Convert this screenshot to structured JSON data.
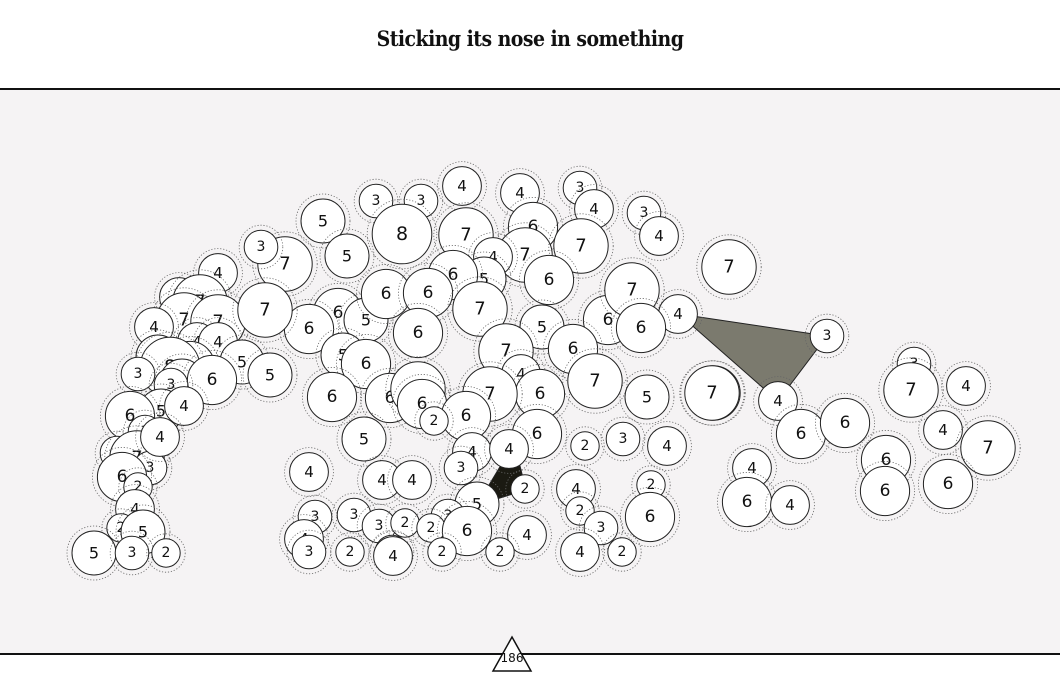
{
  "puzzle": {
    "title": "Sticking its nose in something",
    "page_number": "186",
    "colors": {
      "background": "#f5f3f4",
      "header": "#ffffff",
      "bubble_fill": "#ffffff",
      "bubble_stroke": "#222222",
      "halo_stroke": "#666666",
      "shape_gray": "#7b7a6e",
      "shape_black": "#1b1a12"
    },
    "bubbles": [
      {
        "label": "3"
      },
      {
        "label": "3"
      },
      {
        "label": "4"
      },
      {
        "label": "4"
      },
      {
        "label": "3"
      },
      {
        "label": "4"
      },
      {
        "label": "6"
      },
      {
        "label": "3"
      },
      {
        "label": "4"
      },
      {
        "label": "5"
      },
      {
        "label": "8"
      },
      {
        "label": "7"
      },
      {
        "label": "7"
      },
      {
        "label": "7"
      },
      {
        "label": "4"
      },
      {
        "label": "7"
      },
      {
        "label": "5"
      },
      {
        "label": "5"
      },
      {
        "label": "6"
      },
      {
        "label": "6"
      },
      {
        "label": "3"
      },
      {
        "label": "7"
      },
      {
        "label": "4"
      },
      {
        "label": "4"
      },
      {
        "label": "7"
      },
      {
        "label": "4"
      },
      {
        "label": "7"
      },
      {
        "label": "7"
      },
      {
        "label": "4"
      },
      {
        "label": "4"
      },
      {
        "label": "6"
      },
      {
        "label": "5"
      },
      {
        "label": "6"
      },
      {
        "label": "6"
      },
      {
        "label": "6"
      },
      {
        "label": "7"
      },
      {
        "label": "6"
      },
      {
        "label": "7"
      },
      {
        "label": "5"
      },
      {
        "label": "4"
      },
      {
        "label": "3"
      },
      {
        "label": "4"
      },
      {
        "label": "6"
      },
      {
        "label": "5"
      },
      {
        "label": "7"
      },
      {
        "label": "6"
      },
      {
        "label": "5"
      },
      {
        "label": "6"
      },
      {
        "label": "5"
      },
      {
        "label": "6"
      },
      {
        "label": "5"
      },
      {
        "label": "8"
      },
      {
        "label": "3"
      },
      {
        "label": "6"
      },
      {
        "label": "7"
      },
      {
        "label": "5"
      },
      {
        "label": "6"
      },
      {
        "label": "3"
      },
      {
        "label": "7"
      },
      {
        "label": "7"
      },
      {
        "label": "4"
      },
      {
        "label": "6"
      },
      {
        "label": "6"
      },
      {
        "label": "7"
      },
      {
        "label": "6"
      },
      {
        "label": "5"
      },
      {
        "label": "7"
      },
      {
        "label": "4"
      },
      {
        "label": "6"
      },
      {
        "label": "7"
      },
      {
        "label": "3"
      },
      {
        "label": "4"
      },
      {
        "label": "6"
      },
      {
        "label": "5"
      },
      {
        "label": "6"
      },
      {
        "label": "6"
      },
      {
        "label": "2"
      },
      {
        "label": "6"
      },
      {
        "label": "7"
      },
      {
        "label": "4"
      },
      {
        "label": "4"
      },
      {
        "label": "7"
      },
      {
        "label": "3"
      },
      {
        "label": "3"
      },
      {
        "label": "7"
      },
      {
        "label": "3"
      },
      {
        "label": "6"
      },
      {
        "label": "4"
      },
      {
        "label": "4"
      },
      {
        "label": "3"
      },
      {
        "label": "2"
      },
      {
        "label": "5"
      },
      {
        "label": "4"
      },
      {
        "label": "4"
      },
      {
        "label": "6"
      },
      {
        "label": "6"
      },
      {
        "label": "2"
      },
      {
        "label": "4"
      },
      {
        "label": "4"
      },
      {
        "label": "4"
      },
      {
        "label": "4"
      },
      {
        "label": "3"
      },
      {
        "label": "2"
      },
      {
        "label": "2"
      },
      {
        "label": "6"
      },
      {
        "label": "4"
      },
      {
        "label": "6"
      },
      {
        "label": "4"
      },
      {
        "label": "6"
      },
      {
        "label": "5"
      },
      {
        "label": "4"
      },
      {
        "label": "2"
      },
      {
        "label": "3"
      },
      {
        "label": "3"
      },
      {
        "label": "3"
      },
      {
        "label": "4"
      },
      {
        "label": "3"
      },
      {
        "label": "2"
      },
      {
        "label": "6"
      },
      {
        "label": "2"
      },
      {
        "label": "2"
      },
      {
        "label": "5"
      },
      {
        "label": "3"
      },
      {
        "label": "6"
      },
      {
        "label": "4"
      },
      {
        "label": "3"
      },
      {
        "label": "2"
      },
      {
        "label": "3"
      },
      {
        "label": "2"
      },
      {
        "label": "2"
      },
      {
        "label": "4"
      },
      {
        "label": "2"
      },
      {
        "label": "5"
      },
      {
        "label": "3"
      },
      {
        "label": "2"
      },
      {
        "label": "4"
      },
      {
        "label": "3"
      }
    ],
    "shapes": [
      {
        "name": "gray-triangle",
        "color": "#7b7a6e"
      },
      {
        "name": "black-quad",
        "color": "#1b1a12"
      }
    ]
  }
}
